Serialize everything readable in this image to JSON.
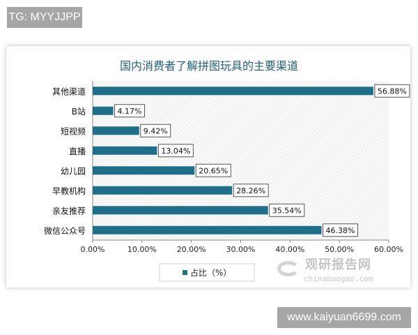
{
  "watermark_top": "TG: MYYJJPP",
  "watermark_bottom": "www.kaiyuan6699.com",
  "logo": {
    "cn": "观研报告网",
    "en": "chinabaogao.com"
  },
  "chart_data": {
    "type": "bar",
    "orientation": "horizontal",
    "title": "国内消费者了解拼图玩具的主要渠道",
    "categories": [
      "其他渠道",
      "B站",
      "短视频",
      "直播",
      "幼儿园",
      "早教机构",
      "亲友推荐",
      "微信公众号"
    ],
    "series": [
      {
        "name": "占比（%）",
        "values": [
          56.88,
          4.17,
          9.42,
          13.04,
          20.65,
          28.26,
          35.54,
          46.38
        ],
        "color": "#1f6f8b"
      }
    ],
    "data_labels": [
      "56.88%",
      "4.17%",
      "9.42%",
      "13.04%",
      "20.65%",
      "28.26%",
      "35.54%",
      "46.38%"
    ],
    "xlim": [
      0,
      60
    ],
    "xticks": [
      "0.00%",
      "10.00%",
      "20.00%",
      "30.00%",
      "40.00%",
      "50.00%",
      "60.00%"
    ],
    "legend": "bottom",
    "grid": false
  }
}
